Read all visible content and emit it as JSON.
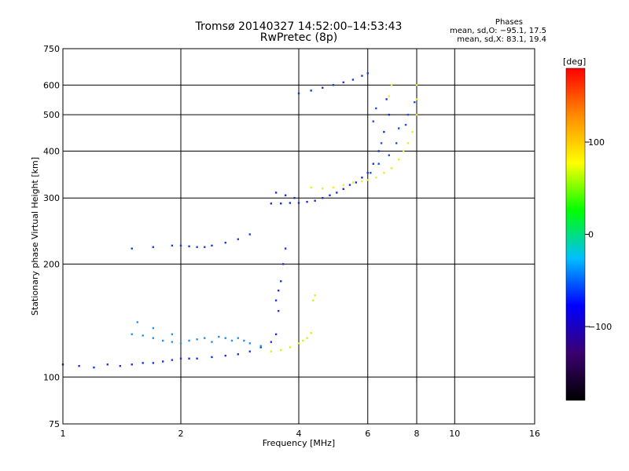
{
  "header": {
    "title_line1": "Tromsø 20140327 14:52:00–14:53:43",
    "title_line2": "RwPretec (8p)",
    "phases_label": "Phases",
    "phases_o": "mean, sd,O: −95.1, 17.5",
    "phases_x": "mean, sd,X:  83.1, 19.4"
  },
  "colorbar": {
    "unit": "[deg]",
    "ticks": [
      "100",
      "0",
      "−100"
    ],
    "tick_values": [
      100,
      0,
      -100
    ],
    "range": [
      -180,
      180
    ],
    "colors": [
      "#000000",
      "#3b0070",
      "#0000ff",
      "#00bfff",
      "#00ff00",
      "#ffff00",
      "#ff8c00",
      "#ff0000"
    ]
  },
  "chart_data": {
    "type": "scatter",
    "title": "Tromsø 20140327 14:52:00–14:53:43",
    "subtitle": "RwPretec (8p)",
    "xlabel": "Frequency [MHz]",
    "ylabel": "Stationary phase Virtual Height [km]",
    "x_scale": "log",
    "y_scale": "log",
    "xlim": [
      1,
      16
    ],
    "ylim": [
      75,
      750
    ],
    "x_ticks": [
      1,
      2,
      4,
      6,
      8,
      10,
      16
    ],
    "x_tick_labels": [
      "1",
      "2",
      "4",
      "6",
      "8",
      "10",
      "16"
    ],
    "y_ticks": [
      75,
      100,
      200,
      300,
      400,
      500,
      600,
      750
    ],
    "y_tick_labels": [
      "75",
      "100",
      "200",
      "300",
      "400",
      "500",
      "600",
      "750"
    ],
    "grid": true,
    "color_scale": "phase [deg]",
    "series": [
      {
        "points": [
          [
            1.0,
            108
          ],
          [
            1.1,
            107
          ],
          [
            1.2,
            106
          ],
          [
            1.3,
            108
          ],
          [
            1.4,
            107
          ],
          [
            1.5,
            108
          ],
          [
            1.6,
            109
          ],
          [
            1.7,
            109
          ],
          [
            1.8,
            110
          ],
          [
            1.9,
            111
          ],
          [
            2.0,
            112
          ],
          [
            2.1,
            112
          ],
          [
            2.2,
            112
          ],
          [
            2.4,
            113
          ],
          [
            2.6,
            114
          ],
          [
            2.8,
            115
          ],
          [
            3.0,
            117
          ],
          [
            3.2,
            120
          ],
          [
            3.4,
            124
          ],
          [
            3.5,
            130
          ],
          [
            3.55,
            150
          ],
          [
            3.6,
            180
          ],
          [
            3.65,
            200
          ],
          [
            3.7,
            220
          ],
          [
            3.55,
            170
          ],
          [
            3.5,
            160
          ]
        ],
        "color": "#1a33e0"
      },
      {
        "points": [
          [
            1.5,
            130
          ],
          [
            1.6,
            129
          ],
          [
            1.7,
            127
          ],
          [
            1.8,
            125
          ],
          [
            1.9,
            124
          ],
          [
            2.0,
            123
          ],
          [
            2.1,
            125
          ],
          [
            2.2,
            126
          ],
          [
            2.3,
            127
          ],
          [
            2.4,
            124
          ],
          [
            2.5,
            128
          ],
          [
            2.6,
            127
          ],
          [
            2.7,
            125
          ],
          [
            2.8,
            127
          ],
          [
            2.9,
            125
          ],
          [
            3.0,
            123
          ],
          [
            3.2,
            121
          ],
          [
            1.55,
            140
          ],
          [
            1.7,
            135
          ],
          [
            1.9,
            130
          ]
        ],
        "color": "#2a8fe8"
      },
      {
        "points": [
          [
            3.4,
            117
          ],
          [
            3.6,
            118
          ],
          [
            3.8,
            120
          ],
          [
            4.0,
            123
          ],
          [
            4.1,
            125
          ],
          [
            4.2,
            127
          ],
          [
            4.3,
            131
          ],
          [
            4.35,
            160
          ],
          [
            4.4,
            165
          ]
        ],
        "color": "#d8f01a"
      },
      {
        "points": [
          [
            1.5,
            220
          ],
          [
            1.7,
            222
          ],
          [
            1.9,
            224
          ],
          [
            2.0,
            224
          ],
          [
            2.1,
            223
          ],
          [
            2.2,
            222
          ],
          [
            2.3,
            222
          ],
          [
            2.4,
            224
          ],
          [
            2.6,
            228
          ],
          [
            2.8,
            233
          ],
          [
            3.0,
            240
          ]
        ],
        "color": "#1a40d8"
      },
      {
        "points": [
          [
            3.4,
            290
          ],
          [
            3.6,
            290
          ],
          [
            3.8,
            291
          ],
          [
            4.0,
            291
          ],
          [
            4.2,
            293
          ],
          [
            4.4,
            295
          ],
          [
            4.6,
            300
          ],
          [
            4.8,
            305
          ],
          [
            5.0,
            310
          ],
          [
            5.2,
            317
          ],
          [
            5.4,
            325
          ],
          [
            5.6,
            330
          ],
          [
            5.8,
            340
          ],
          [
            6.0,
            350
          ],
          [
            6.2,
            370
          ],
          [
            6.4,
            400
          ],
          [
            6.6,
            450
          ],
          [
            6.8,
            500
          ],
          [
            6.7,
            550
          ],
          [
            3.5,
            310
          ],
          [
            3.7,
            305
          ],
          [
            3.9,
            300
          ]
        ],
        "color": "#1830d0"
      },
      {
        "points": [
          [
            4.3,
            320
          ],
          [
            4.6,
            318
          ],
          [
            4.9,
            320
          ],
          [
            5.2,
            325
          ],
          [
            5.5,
            330
          ],
          [
            5.8,
            332
          ],
          [
            6.0,
            335
          ],
          [
            6.3,
            340
          ],
          [
            6.6,
            350
          ],
          [
            6.9,
            360
          ],
          [
            7.2,
            380
          ],
          [
            7.4,
            400
          ],
          [
            7.6,
            420
          ],
          [
            7.8,
            450
          ],
          [
            8.0,
            500
          ],
          [
            8.0,
            550
          ],
          [
            8.0,
            600
          ],
          [
            6.8,
            560
          ],
          [
            6.9,
            600
          ]
        ],
        "color": "#e6f020"
      },
      {
        "points": [
          [
            6.1,
            350
          ],
          [
            6.4,
            370
          ],
          [
            6.8,
            390
          ],
          [
            7.1,
            420
          ],
          [
            7.5,
            470
          ],
          [
            7.9,
            540
          ],
          [
            7.6,
            500
          ],
          [
            7.2,
            460
          ],
          [
            6.5,
            420
          ],
          [
            6.2,
            480
          ],
          [
            6.3,
            520
          ]
        ],
        "color": "#1f4ee0"
      },
      {
        "points": [
          [
            4.0,
            570
          ],
          [
            4.3,
            580
          ],
          [
            4.6,
            590
          ],
          [
            4.9,
            600
          ],
          [
            5.2,
            610
          ],
          [
            5.5,
            620
          ],
          [
            5.8,
            635
          ],
          [
            6.0,
            645
          ]
        ],
        "color": "#1a35d8"
      }
    ]
  }
}
